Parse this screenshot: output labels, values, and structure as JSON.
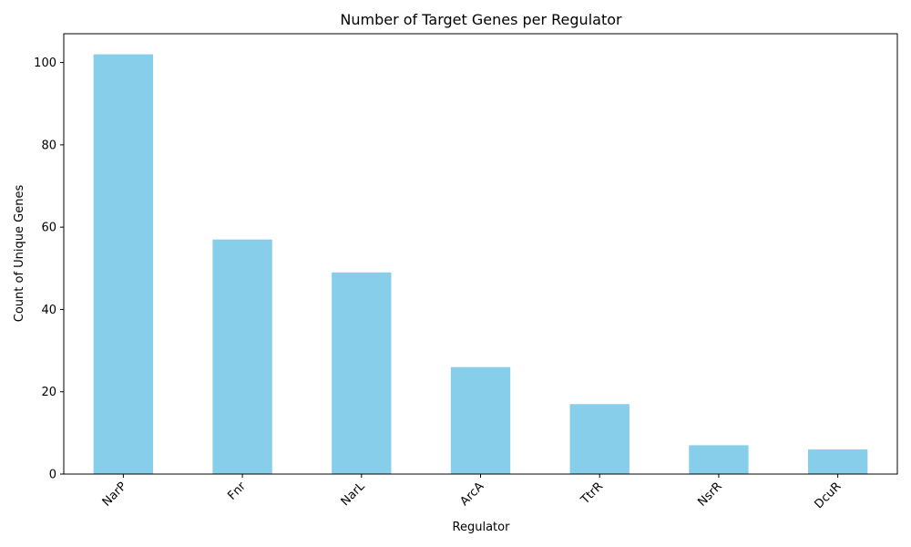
{
  "chart_data": {
    "type": "bar",
    "title": "Number of Target Genes per Regulator",
    "xlabel": "Regulator",
    "ylabel": "Count of Unique Genes",
    "categories": [
      "NarP",
      "Fnr",
      "NarL",
      "ArcA",
      "TtrR",
      "NsrR",
      "DcuR"
    ],
    "values": [
      102,
      57,
      49,
      26,
      17,
      7,
      6
    ],
    "ylim": [
      0,
      107
    ],
    "yticks": [
      0,
      20,
      40,
      60,
      80,
      100
    ],
    "xtick_rotation_deg": 45,
    "bar_color": "#87CEEB",
    "grid": false,
    "legend": false
  }
}
